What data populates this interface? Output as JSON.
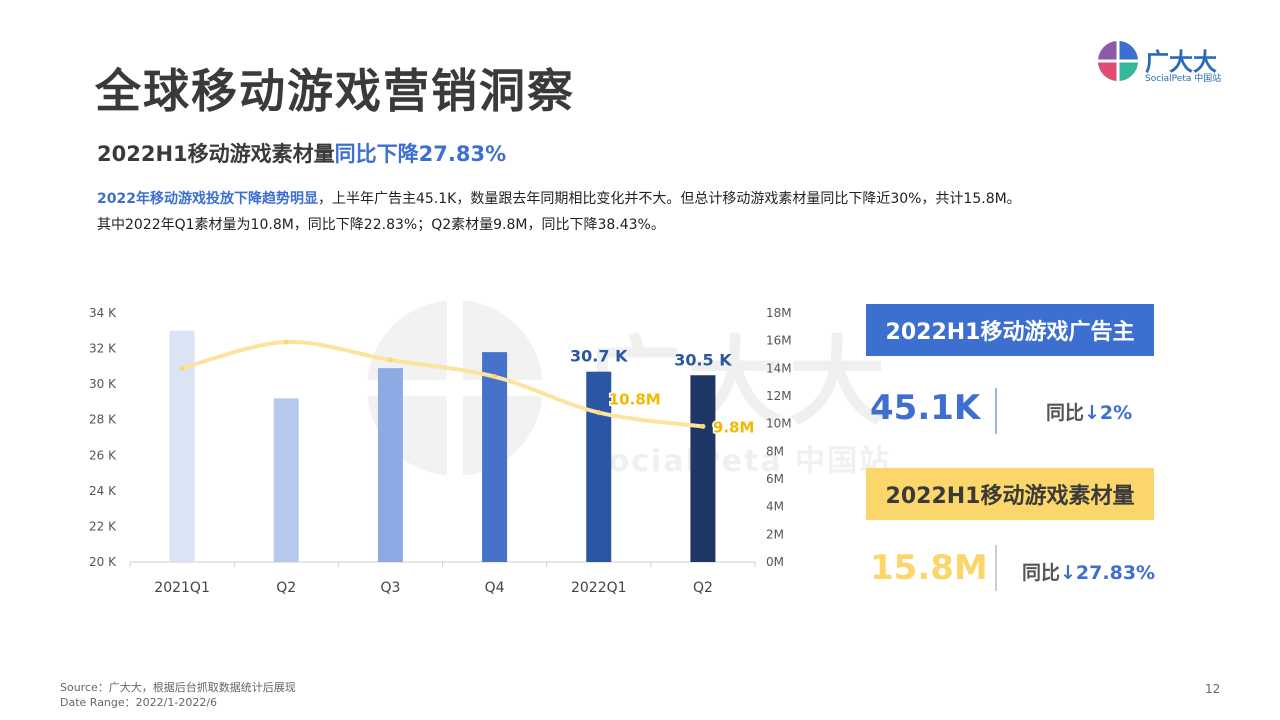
{
  "title": "全球移动游戏营销洞察",
  "logo": {
    "name": "广大大",
    "sub": "SocialPeta 中国站"
  },
  "subtitle": {
    "prefix": "2022H1移动游戏素材量",
    "highlight": "同比下降27.83%"
  },
  "desc": {
    "highlight": "2022年移动游戏投放下降趋势明显",
    "line1_rest": "，上半年广告主45.1K，数量跟去年同期相比变化并不大。但总计移动游戏素材量同比下降近30%，共计15.8M。",
    "line2": "其中2022年Q1素材量为10.8M，同比下降22.83%；Q2素材量9.8M，同比下降38.43%。"
  },
  "watermark": {
    "big": "广大大",
    "small": "SocialPeta 中国站"
  },
  "kpis": {
    "advertisers": {
      "label": "2022H1移动游戏广告主",
      "value": "45.1K",
      "yoy_prefix": "同比",
      "yoy_value": "↓2%"
    },
    "creatives": {
      "label": "2022H1移动游戏素材量",
      "value": "15.8M",
      "yoy_prefix": "同比",
      "yoy_value": "↓27.83%"
    }
  },
  "footer": {
    "source": "Source：广大大，根据后台抓取数据统计后展现",
    "range": "Date Range：2022/1-2022/6"
  },
  "page_number": "12",
  "colors": {
    "accent_blue": "#3d6fd0",
    "accent_yellow": "#fbd66a",
    "bars": [
      "#dbe4f5",
      "#b6c8ec",
      "#8eaae2",
      "#4672cc",
      "#2b56a4",
      "#1f3766"
    ]
  },
  "chart_data": {
    "type": "bar",
    "categories": [
      "2021Q1",
      "Q2",
      "Q3",
      "Q4",
      "2022Q1",
      "Q2"
    ],
    "series": [
      {
        "type": "bar",
        "axis": "left",
        "values": [
          33.0,
          29.2,
          30.9,
          31.8,
          30.7,
          30.5
        ],
        "labels": [
          "",
          "",
          "",
          "",
          "30.7 K",
          "30.5 K"
        ]
      },
      {
        "type": "line",
        "axis": "right",
        "values": [
          14.0,
          15.9,
          14.6,
          13.4,
          10.8,
          9.8
        ],
        "labels": [
          "",
          "",
          "",
          "",
          "10.8M",
          "9.8M"
        ]
      }
    ],
    "y_left": {
      "min": 20,
      "max": 34,
      "step": 2,
      "ticks": [
        "20 K",
        "22 K",
        "24 K",
        "26 K",
        "28 K",
        "30 K",
        "32 K",
        "34 K"
      ]
    },
    "y_right": {
      "min": 0,
      "max": 18,
      "step": 2,
      "ticks": [
        "0M",
        "2M",
        "4M",
        "6M",
        "8M",
        "10M",
        "12M",
        "14M",
        "16M",
        "18M"
      ]
    },
    "title": "",
    "grid": false
  }
}
